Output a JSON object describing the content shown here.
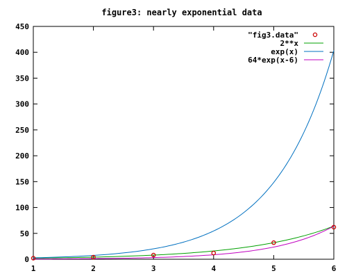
{
  "chart_data": {
    "type": "line",
    "title": "figure3: nearly exponential data",
    "xlabel": "",
    "ylabel": "",
    "xlim": [
      1,
      6
    ],
    "ylim": [
      0,
      450
    ],
    "x_ticks": [
      1,
      2,
      3,
      4,
      5,
      6
    ],
    "y_ticks": [
      0,
      50,
      100,
      150,
      200,
      250,
      300,
      350,
      400,
      450
    ],
    "grid": false,
    "legend_position": "top-right",
    "points": {
      "name": "\"fig3.data\"",
      "color": "#cc0000",
      "x": [
        1,
        2,
        3,
        4,
        5,
        6
      ],
      "y": [
        2,
        4,
        8,
        12,
        32,
        62
      ]
    },
    "series": [
      {
        "name": "2**x",
        "color": "#00a000",
        "fn": "pow2"
      },
      {
        "name": "exp(x)",
        "color": "#0070c0",
        "fn": "exp"
      },
      {
        "name": "64*exp(x-6)",
        "color": "#c000c0",
        "fn": "exp_shift"
      }
    ]
  }
}
